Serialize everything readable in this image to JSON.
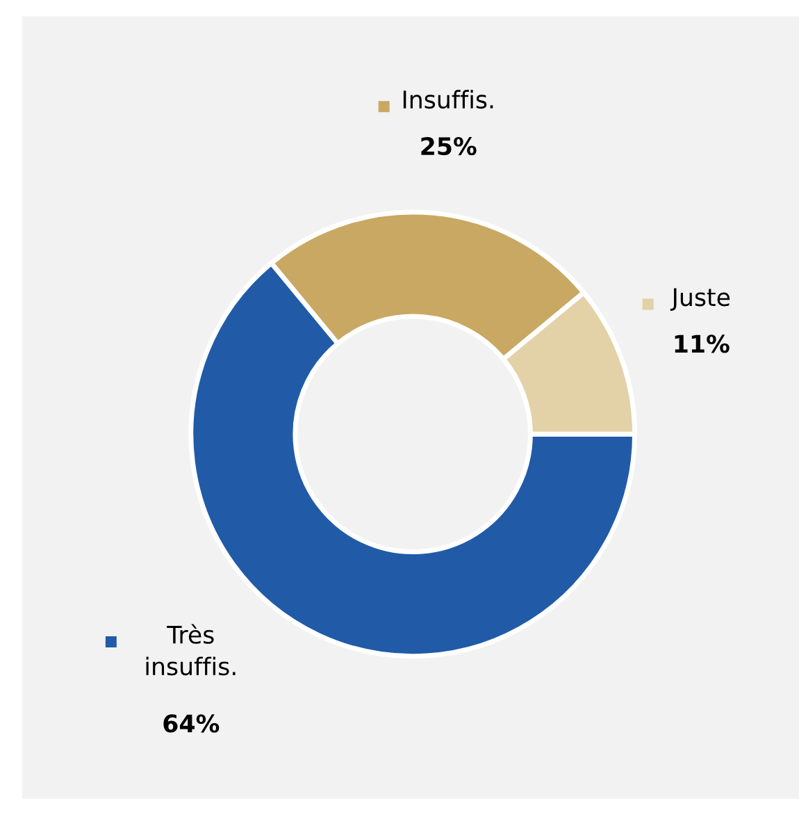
{
  "chart_data": {
    "type": "donut",
    "categories": [
      "Très\ninsuffis.",
      "Insuffis.",
      "Juste"
    ],
    "values": [
      64,
      25,
      11
    ],
    "colors": [
      "#215ba8",
      "#c8a862",
      "#e3d1a8"
    ],
    "value_labels": [
      "64%",
      "25%",
      "11%"
    ],
    "legend": "top"
  }
}
